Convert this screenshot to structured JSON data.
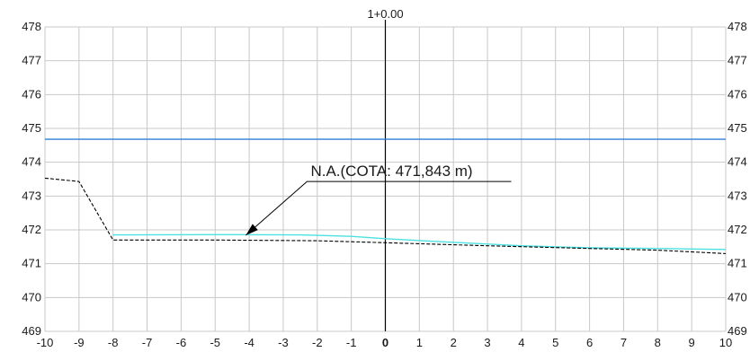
{
  "chart_data": {
    "type": "line",
    "title": "1+0.00",
    "xlim": [
      -10,
      10
    ],
    "ylim": [
      469,
      478
    ],
    "x_ticks": [
      -10,
      -9,
      -8,
      -7,
      -6,
      -5,
      -4,
      -3,
      -2,
      -1,
      0,
      1,
      2,
      3,
      4,
      5,
      6,
      7,
      8,
      9,
      10
    ],
    "y_ticks": [
      469,
      470,
      471,
      472,
      473,
      474,
      475,
      476,
      477,
      478
    ],
    "grid": true,
    "grid_color": "#c8c8c8",
    "center_axis_x": 0,
    "series": [
      {
        "style": "solid",
        "color": "#2f7fd6",
        "x": [
          -10,
          10
        ],
        "y": [
          474.68,
          474.68
        ]
      },
      {
        "style": "solid",
        "color": "#4de0e0",
        "x": [
          -8,
          -5,
          -2.5,
          -1,
          0,
          2,
          4,
          6,
          8,
          10
        ],
        "y": [
          471.85,
          471.86,
          471.85,
          471.81,
          471.74,
          471.63,
          471.53,
          471.47,
          471.45,
          471.42
        ]
      },
      {
        "style": "dashed",
        "color": "#000000",
        "x": [
          -10,
          -9,
          -8,
          -5,
          -2,
          0,
          3,
          6,
          8,
          10
        ],
        "y": [
          473.53,
          473.43,
          471.7,
          471.7,
          471.68,
          471.62,
          471.53,
          471.45,
          471.4,
          471.3
        ]
      }
    ],
    "annotation": {
      "text": "N.A.(COTA: 471,843 m)",
      "target": [
        -4.1,
        471.84
      ],
      "elbow": [
        -2.3,
        473.43
      ],
      "label_at": [
        -2.3,
        473.43
      ],
      "line_end": [
        3.7,
        473.43
      ]
    }
  }
}
